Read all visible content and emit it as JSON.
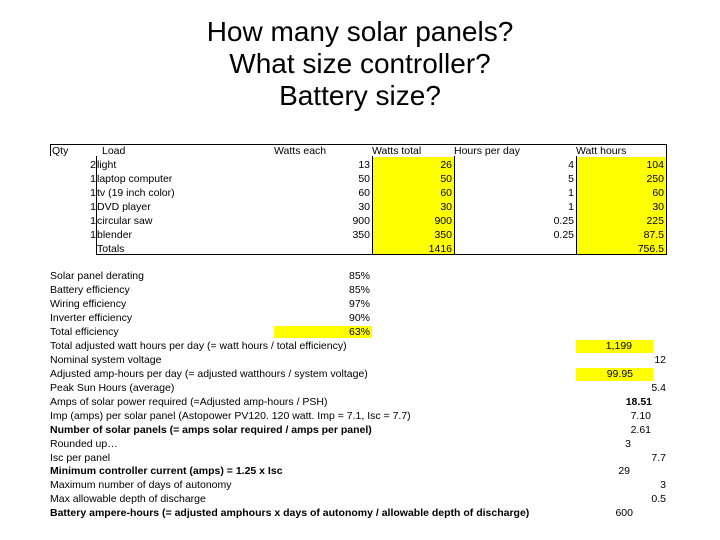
{
  "title": {
    "line1": "How many solar panels?",
    "line2": "What size controller?",
    "line3": "Battery size?"
  },
  "table": {
    "headers": {
      "qty": "Qty",
      "load": "Load",
      "watts_each": "Watts each",
      "watts_total": "Watts total",
      "hours": "Hours per day",
      "watt_hours": "Watt hours"
    },
    "rows": [
      {
        "qty": "2",
        "load": "light",
        "watts_each": "13",
        "watts_total": "26",
        "hours": "4",
        "watt_hours": "104"
      },
      {
        "qty": "1",
        "load": "laptop computer",
        "watts_each": "50",
        "watts_total": "50",
        "hours": "5",
        "watt_hours": "250"
      },
      {
        "qty": "1",
        "load": "tv (19 inch color)",
        "watts_each": "60",
        "watts_total": "60",
        "hours": "1",
        "watt_hours": "60"
      },
      {
        "qty": "1",
        "load": "DVD player",
        "watts_each": "30",
        "watts_total": "30",
        "hours": "1",
        "watt_hours": "30"
      },
      {
        "qty": "1",
        "load": "circular saw",
        "watts_each": "900",
        "watts_total": "900",
        "hours": "0.25",
        "watt_hours": "225"
      },
      {
        "qty": "1",
        "load": "blender",
        "watts_each": "350",
        "watts_total": "350",
        "hours": "0.25",
        "watt_hours": "87.5"
      }
    ],
    "totals": {
      "label": "Totals",
      "watts_total": "1416",
      "watt_hours": "756.5"
    }
  },
  "efficiency": [
    {
      "label": "Solar panel derating",
      "value": "85%"
    },
    {
      "label": "Battery efficiency",
      "value": "85%"
    },
    {
      "label": "Wiring efficiency",
      "value": "97%"
    },
    {
      "label": "Inverter efficiency",
      "value": "90%"
    },
    {
      "label": "Total efficiency",
      "value": "63%"
    }
  ],
  "calculations": [
    {
      "label": "Total adjusted watt hours per day (= watt hours / total efficiency)",
      "value": "1,199"
    },
    {
      "label": "Nominal system voltage",
      "value": "12"
    },
    {
      "label": "Adjusted amp-hours per day (= adjusted watthours / system voltage)",
      "value": "99.95"
    },
    {
      "label": "Peak Sun Hours (average)",
      "value": "5.4"
    },
    {
      "label": "Amps of solar power required (=Adjusted amp-hours / PSH)",
      "value": "18.51"
    },
    {
      "label": "Imp (amps) per solar panel (Astopower PV120. 120 watt. Imp = 7.1, Isc = 7.7)",
      "value": "7.10"
    },
    {
      "label": "Number of solar panels (= amps solar required / amps per panel)",
      "value": "2.61"
    },
    {
      "label": "Rounded up…",
      "value": "3"
    },
    {
      "label": "Isc per panel",
      "value": "7.7"
    },
    {
      "label": "Minimum controller current (amps) = 1.25 x Isc",
      "value": "29"
    },
    {
      "label": "Maximum number of days of autonomy",
      "value": "3"
    },
    {
      "label": "Max allowable depth of discharge",
      "value": "0.5"
    },
    {
      "label": "Battery ampere-hours (= adjusted amphours  x days of autonomy / allowable depth of discharge)",
      "value": "600"
    }
  ],
  "colors": {
    "highlight": "#ffff00",
    "text": "#000000",
    "background": "#ffffff"
  }
}
